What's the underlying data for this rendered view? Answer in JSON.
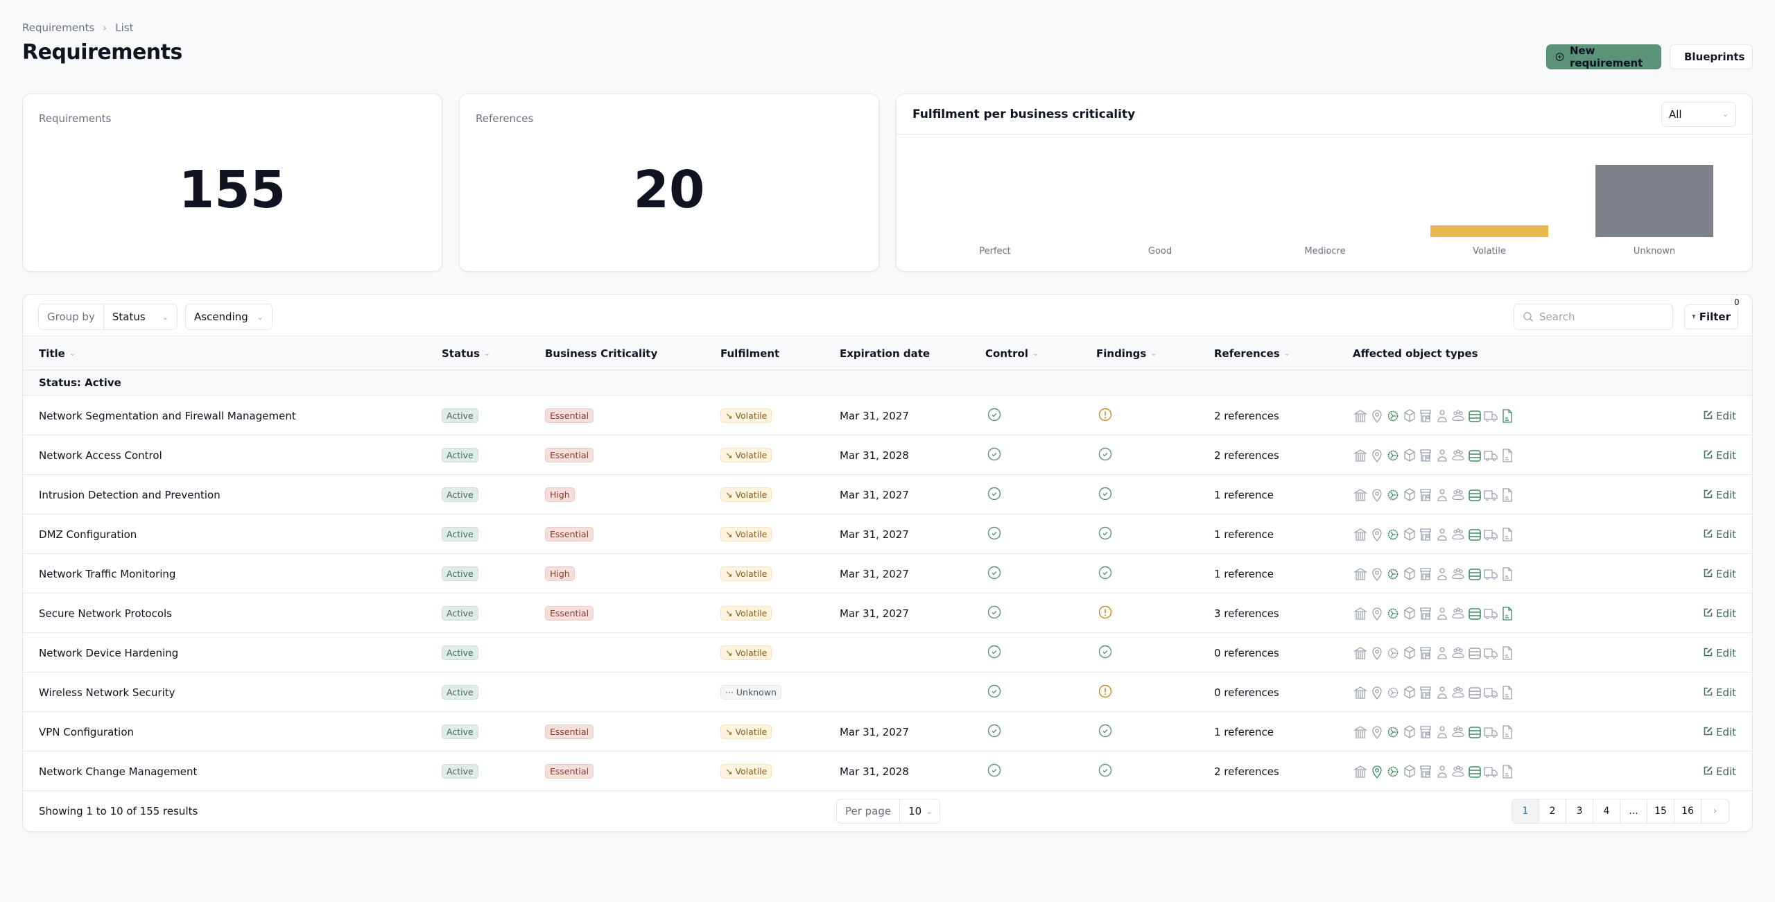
{
  "breadcrumb": [
    "Requirements",
    "List"
  ],
  "page_title": "Requirements",
  "actions": {
    "new_label": "New requirement",
    "blueprints_label": "Blueprints"
  },
  "stats": [
    {
      "label": "Requirements",
      "value": "155"
    },
    {
      "label": "References",
      "value": "20"
    }
  ],
  "chart_data": {
    "type": "bar",
    "title": "Fulfilment per business criticality",
    "filter": "All",
    "categories": [
      "Perfect",
      "Good",
      "Mediocre",
      "Volatile",
      "Unknown"
    ],
    "values": [
      0,
      0,
      0,
      1,
      6
    ],
    "colors": [
      "#5b9378",
      "#5b9378",
      "#5b9378",
      "#e8b94f",
      "#7c818c"
    ],
    "ylim": [
      0,
      6
    ]
  },
  "toolbar": {
    "group_by_label": "Group by",
    "group_by_value": "Status",
    "order_value": "Ascending",
    "search_placeholder": "Search",
    "filter_label": "Filter",
    "filter_count": "0"
  },
  "columns": [
    "Title",
    "Status",
    "Business Criticality",
    "Fulfilment",
    "Expiration date",
    "Control",
    "Findings",
    "References",
    "Affected object types"
  ],
  "group_label": "Status: Active",
  "object_types": [
    "bank",
    "location-pin",
    "gear",
    "box",
    "store",
    "person",
    "group",
    "server",
    "truck",
    "document"
  ],
  "rows": [
    {
      "title": "Network Segmentation and Firewall Management",
      "status": "Active",
      "criticality": "Essential",
      "fulfilment": "Volatile",
      "expiration": "Mar 31, 2027",
      "control": "ok",
      "findings": "warning",
      "references": "2 references",
      "active_types": [
        2,
        7,
        9
      ]
    },
    {
      "title": "Network Access Control",
      "status": "Active",
      "criticality": "Essential",
      "fulfilment": "Volatile",
      "expiration": "Mar 31, 2028",
      "control": "ok",
      "findings": "ok",
      "references": "2 references",
      "active_types": [
        2,
        7
      ]
    },
    {
      "title": "Intrusion Detection and Prevention",
      "status": "Active",
      "criticality": "High",
      "fulfilment": "Volatile",
      "expiration": "Mar 31, 2027",
      "control": "ok",
      "findings": "ok",
      "references": "1 reference",
      "active_types": [
        2,
        7
      ]
    },
    {
      "title": "DMZ Configuration",
      "status": "Active",
      "criticality": "Essential",
      "fulfilment": "Volatile",
      "expiration": "Mar 31, 2027",
      "control": "ok",
      "findings": "ok",
      "references": "1 reference",
      "active_types": [
        2,
        7
      ]
    },
    {
      "title": "Network Traffic Monitoring",
      "status": "Active",
      "criticality": "High",
      "fulfilment": "Volatile",
      "expiration": "Mar 31, 2027",
      "control": "ok",
      "findings": "ok",
      "references": "1 reference",
      "active_types": [
        2,
        7
      ]
    },
    {
      "title": "Secure Network Protocols",
      "status": "Active",
      "criticality": "Essential",
      "fulfilment": "Volatile",
      "expiration": "Mar 31, 2027",
      "control": "ok",
      "findings": "warning",
      "references": "3 references",
      "active_types": [
        2,
        7,
        9
      ]
    },
    {
      "title": "Network Device Hardening",
      "status": "Active",
      "criticality": "",
      "fulfilment": "Volatile",
      "expiration": "",
      "control": "ok",
      "findings": "ok",
      "references": "0 references",
      "active_types": []
    },
    {
      "title": "Wireless Network Security",
      "status": "Active",
      "criticality": "",
      "fulfilment": "Unknown",
      "expiration": "",
      "control": "ok",
      "findings": "warning",
      "references": "0 references",
      "active_types": []
    },
    {
      "title": "VPN Configuration",
      "status": "Active",
      "criticality": "Essential",
      "fulfilment": "Volatile",
      "expiration": "Mar 31, 2027",
      "control": "ok",
      "findings": "ok",
      "references": "1 reference",
      "active_types": [
        2,
        7
      ]
    },
    {
      "title": "Network Change Management",
      "status": "Active",
      "criticality": "Essential",
      "fulfilment": "Volatile",
      "expiration": "Mar 31, 2028",
      "control": "ok",
      "findings": "ok",
      "references": "2 references",
      "active_types": [
        1,
        2,
        7
      ]
    }
  ],
  "edit_label": "Edit",
  "footer": {
    "showing": "Showing 1 to 10 of 155 results",
    "per_page_label": "Per page",
    "per_page_value": "10",
    "pages": [
      "1",
      "2",
      "3",
      "4",
      "...",
      "15",
      "16"
    ],
    "current_page": "1"
  }
}
